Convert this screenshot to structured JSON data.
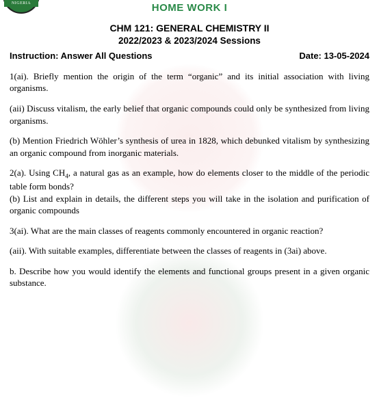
{
  "logo": {
    "band_text": "NIGERIA"
  },
  "header": {
    "homework": "HOME WORK I",
    "course": "CHM 121: GENERAL CHEMISTRY II",
    "sessions": "2022/2023 & 2023/2024 Sessions",
    "instruction_label": "Instruction: Answer All Questions",
    "date_label": "Date: 13-05-2024"
  },
  "questions": {
    "q1ai": "1(ai). Briefly mention the origin of the term “organic” and its initial association with living organisms.",
    "q1aii": "(aii) Discuss vitalism, the early belief that organic compounds could only be synthesized from living organisms.",
    "q1b": "(b) Mention Friedrich Wöhler’s synthesis of urea in 1828, which debunked vitalism by synthesizing an organic compound from inorganic materials.",
    "q2a_pre": "2(a). Using CH",
    "q2a_sub": "4",
    "q2a_post": ", a natural gas as an example, how do elements closer to the middle of the periodic table form bonds?",
    "q2b": "(b) List and explain in details, the different steps you will take in the isolation and purification of organic compounds",
    "q3ai": "3(ai). What are the main classes of reagents commonly encountered in organic reaction?",
    "q3aii": "(aii). With suitable examples, differentiate between the classes of reagents in (3ai) above.",
    "q3b": "b. Describe how you would identify the elements and functional groups present in a given organic substance."
  },
  "colors": {
    "accent_green": "#2a8a48",
    "text": "#000000",
    "background": "#ffffff"
  }
}
